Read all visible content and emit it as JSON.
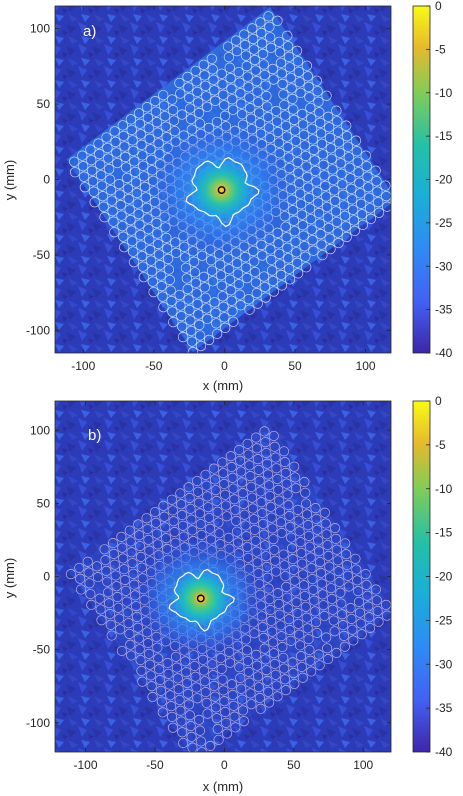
{
  "chart_data": [
    {
      "type": "heatmap",
      "panel_label": "a)",
      "xlabel": "x (mm)",
      "ylabel": "y (mm)",
      "xlim": [
        -120,
        118
      ],
      "ylim": [
        -115,
        115
      ],
      "xticks": [
        -100,
        -50,
        0,
        50,
        100
      ],
      "yticks": [
        100,
        50,
        0,
        -50,
        -100
      ],
      "colorbar": {
        "range": [
          -40,
          0
        ],
        "ticks": [
          0,
          -5,
          -10,
          -15,
          -20,
          -25,
          -30,
          -35,
          -40
        ],
        "colormap": "parula"
      },
      "array_grid": {
        "center": [
          5,
          0
        ],
        "rotation_deg": 35,
        "half_width": 88,
        "half_height": 78,
        "pitch": 7,
        "circle_radius_mm": 3.4
      },
      "focus": {
        "x": -2,
        "y": -7,
        "value": 0
      },
      "contour_level": -6,
      "contour_radius_mm": 22,
      "colors": {
        "circle": "#e6f2ff",
        "contour": "#ffffff",
        "focus_marker": "#000000",
        "background": "#2b3bb8"
      }
    },
    {
      "type": "heatmap",
      "panel_label": "b)",
      "xlabel": "x (mm)",
      "ylabel": "y (mm)",
      "xlim": [
        -122,
        120
      ],
      "ylim": [
        -120,
        120
      ],
      "xticks": [
        -100,
        -50,
        0,
        50,
        100
      ],
      "yticks": [
        100,
        50,
        0,
        -50,
        -100
      ],
      "colorbar": {
        "range": [
          -40,
          0
        ],
        "ticks": [
          0,
          -5,
          -10,
          -15,
          -20,
          -25,
          -30,
          -35,
          -40
        ],
        "colormap": "parula"
      },
      "array_grid": {
        "center": [
          5,
          -10
        ],
        "rotation_deg": 35,
        "half_width": 88,
        "half_height": 78,
        "pitch": 7.4,
        "circle_radius_mm": 3.4
      },
      "focus": {
        "x": -17,
        "y": -15,
        "value": 0
      },
      "contour_level": -6,
      "contour_radius_mm": 20,
      "colors": {
        "circle": "#d9c8ea",
        "contour": "#ffffff",
        "focus_marker": "#000000",
        "background": "#2b3bb8"
      }
    }
  ]
}
